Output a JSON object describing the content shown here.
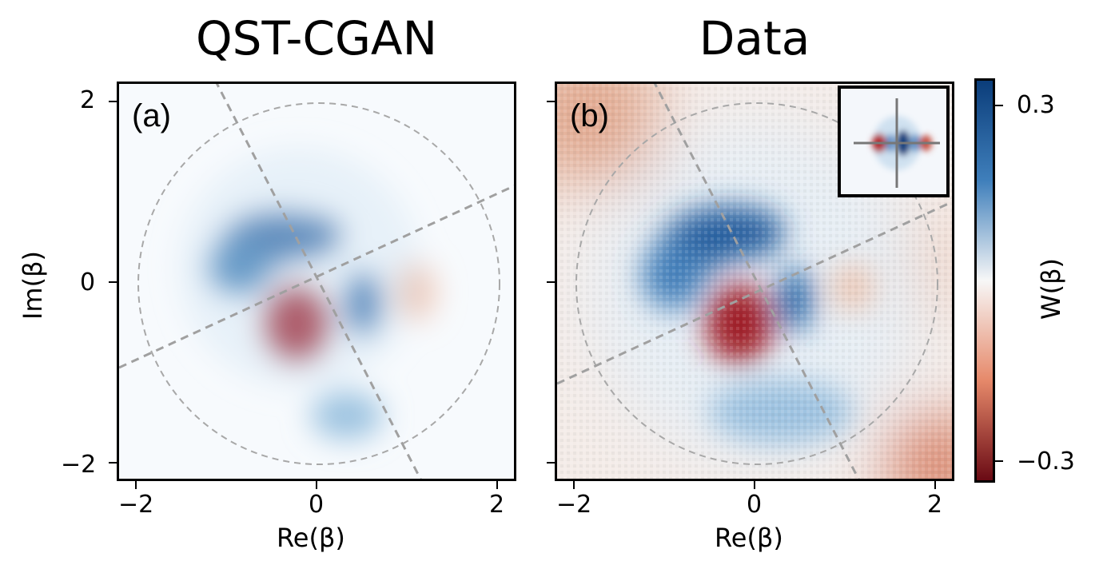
{
  "titles": {
    "left": "QST-CGAN",
    "right": "Data"
  },
  "panels": {
    "a_label": "(a)",
    "b_label": "(b)"
  },
  "axes": {
    "xlabel": "Re(β)",
    "ylabel": "Im(β)",
    "xticks": [
      "−2",
      "0",
      "2"
    ],
    "yticks": [
      "2",
      "0",
      "−2"
    ]
  },
  "colorbar": {
    "label": "W(β)",
    "ticks": [
      "0.3",
      "−0.3"
    ],
    "colors": {
      "high": "#0b3d7a",
      "mid": "#f7f7f7",
      "low": "#6a0a14"
    }
  },
  "chart_data": [
    {
      "type": "heatmap",
      "title": "QST-CGAN",
      "panel": "(a)",
      "xlabel": "Re(β)",
      "ylabel": "Im(β)",
      "xlim": [
        -2.2,
        2.2
      ],
      "ylim": [
        -2.2,
        2.2
      ],
      "features": [
        {
          "shape": "arc",
          "sign": "positive",
          "center": [
            -0.4,
            0.6
          ],
          "peak": 0.3
        },
        {
          "shape": "lobe",
          "sign": "negative",
          "center": [
            -0.3,
            -0.5
          ],
          "peak": -0.3
        },
        {
          "shape": "lobe",
          "sign": "positive",
          "center": [
            0.5,
            -0.2
          ],
          "peak": 0.2
        },
        {
          "shape": "lobe",
          "sign": "negative",
          "center": [
            1.1,
            0.0
          ],
          "peak": -0.05
        }
      ],
      "overlay": {
        "circle_radius": 2,
        "line_angles_deg": [
          -63,
          22
        ]
      }
    },
    {
      "type": "heatmap",
      "title": "Data",
      "panel": "(b)",
      "xlabel": "Re(β)",
      "ylabel": "Im(β)",
      "xlim": [
        -2.2,
        2.2
      ],
      "ylim": [
        -2.2,
        2.2
      ],
      "features": [
        {
          "shape": "arc",
          "sign": "positive",
          "center": [
            -0.4,
            0.6
          ],
          "peak": 0.3
        },
        {
          "shape": "lobe",
          "sign": "negative",
          "center": [
            -0.2,
            -0.5
          ],
          "peak": -0.3
        },
        {
          "shape": "lobe",
          "sign": "positive",
          "center": [
            0.5,
            -0.2
          ],
          "peak": 0.2
        }
      ],
      "overlay": {
        "circle_radius": 2,
        "line_angles_deg": [
          -63,
          22
        ]
      },
      "inset": {
        "lobes": [
          "negative",
          "positive",
          "negative"
        ]
      }
    }
  ]
}
